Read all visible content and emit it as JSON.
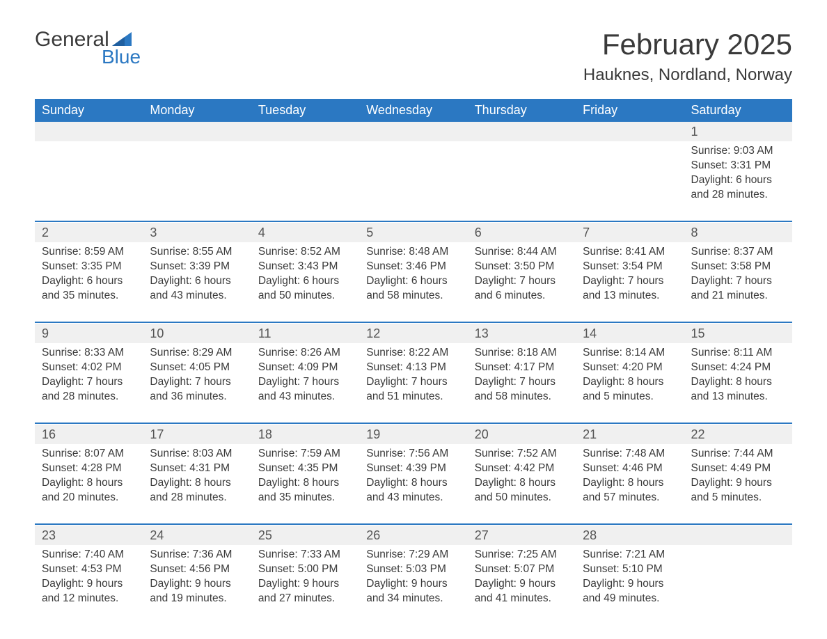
{
  "logo": {
    "text1": "General",
    "text2": "Blue",
    "flag_color": "#2b78c2"
  },
  "title": "February 2025",
  "location": "Hauknes, Nordland, Norway",
  "colors": {
    "header_bg": "#2b78c2",
    "header_text": "#ffffff",
    "daynum_bg": "#f0f0f0",
    "text": "#3a3a3a",
    "rule": "#2b78c2",
    "page_bg": "#ffffff"
  },
  "fonts": {
    "title_size": 42,
    "location_size": 24,
    "header_size": 18,
    "body_size": 15.5
  },
  "day_headers": [
    "Sunday",
    "Monday",
    "Tuesday",
    "Wednesday",
    "Thursday",
    "Friday",
    "Saturday"
  ],
  "weeks": [
    [
      null,
      null,
      null,
      null,
      null,
      null,
      {
        "n": "1",
        "sunrise": "9:03 AM",
        "sunset": "3:31 PM",
        "daylight": "6 hours and 28 minutes."
      }
    ],
    [
      {
        "n": "2",
        "sunrise": "8:59 AM",
        "sunset": "3:35 PM",
        "daylight": "6 hours and 35 minutes."
      },
      {
        "n": "3",
        "sunrise": "8:55 AM",
        "sunset": "3:39 PM",
        "daylight": "6 hours and 43 minutes."
      },
      {
        "n": "4",
        "sunrise": "8:52 AM",
        "sunset": "3:43 PM",
        "daylight": "6 hours and 50 minutes."
      },
      {
        "n": "5",
        "sunrise": "8:48 AM",
        "sunset": "3:46 PM",
        "daylight": "6 hours and 58 minutes."
      },
      {
        "n": "6",
        "sunrise": "8:44 AM",
        "sunset": "3:50 PM",
        "daylight": "7 hours and 6 minutes."
      },
      {
        "n": "7",
        "sunrise": "8:41 AM",
        "sunset": "3:54 PM",
        "daylight": "7 hours and 13 minutes."
      },
      {
        "n": "8",
        "sunrise": "8:37 AM",
        "sunset": "3:58 PM",
        "daylight": "7 hours and 21 minutes."
      }
    ],
    [
      {
        "n": "9",
        "sunrise": "8:33 AM",
        "sunset": "4:02 PM",
        "daylight": "7 hours and 28 minutes."
      },
      {
        "n": "10",
        "sunrise": "8:29 AM",
        "sunset": "4:05 PM",
        "daylight": "7 hours and 36 minutes."
      },
      {
        "n": "11",
        "sunrise": "8:26 AM",
        "sunset": "4:09 PM",
        "daylight": "7 hours and 43 minutes."
      },
      {
        "n": "12",
        "sunrise": "8:22 AM",
        "sunset": "4:13 PM",
        "daylight": "7 hours and 51 minutes."
      },
      {
        "n": "13",
        "sunrise": "8:18 AM",
        "sunset": "4:17 PM",
        "daylight": "7 hours and 58 minutes."
      },
      {
        "n": "14",
        "sunrise": "8:14 AM",
        "sunset": "4:20 PM",
        "daylight": "8 hours and 5 minutes."
      },
      {
        "n": "15",
        "sunrise": "8:11 AM",
        "sunset": "4:24 PM",
        "daylight": "8 hours and 13 minutes."
      }
    ],
    [
      {
        "n": "16",
        "sunrise": "8:07 AM",
        "sunset": "4:28 PM",
        "daylight": "8 hours and 20 minutes."
      },
      {
        "n": "17",
        "sunrise": "8:03 AM",
        "sunset": "4:31 PM",
        "daylight": "8 hours and 28 minutes."
      },
      {
        "n": "18",
        "sunrise": "7:59 AM",
        "sunset": "4:35 PM",
        "daylight": "8 hours and 35 minutes."
      },
      {
        "n": "19",
        "sunrise": "7:56 AM",
        "sunset": "4:39 PM",
        "daylight": "8 hours and 43 minutes."
      },
      {
        "n": "20",
        "sunrise": "7:52 AM",
        "sunset": "4:42 PM",
        "daylight": "8 hours and 50 minutes."
      },
      {
        "n": "21",
        "sunrise": "7:48 AM",
        "sunset": "4:46 PM",
        "daylight": "8 hours and 57 minutes."
      },
      {
        "n": "22",
        "sunrise": "7:44 AM",
        "sunset": "4:49 PM",
        "daylight": "9 hours and 5 minutes."
      }
    ],
    [
      {
        "n": "23",
        "sunrise": "7:40 AM",
        "sunset": "4:53 PM",
        "daylight": "9 hours and 12 minutes."
      },
      {
        "n": "24",
        "sunrise": "7:36 AM",
        "sunset": "4:56 PM",
        "daylight": "9 hours and 19 minutes."
      },
      {
        "n": "25",
        "sunrise": "7:33 AM",
        "sunset": "5:00 PM",
        "daylight": "9 hours and 27 minutes."
      },
      {
        "n": "26",
        "sunrise": "7:29 AM",
        "sunset": "5:03 PM",
        "daylight": "9 hours and 34 minutes."
      },
      {
        "n": "27",
        "sunrise": "7:25 AM",
        "sunset": "5:07 PM",
        "daylight": "9 hours and 41 minutes."
      },
      {
        "n": "28",
        "sunrise": "7:21 AM",
        "sunset": "5:10 PM",
        "daylight": "9 hours and 49 minutes."
      },
      null
    ]
  ],
  "labels": {
    "sunrise": "Sunrise: ",
    "sunset": "Sunset: ",
    "daylight": "Daylight: "
  }
}
